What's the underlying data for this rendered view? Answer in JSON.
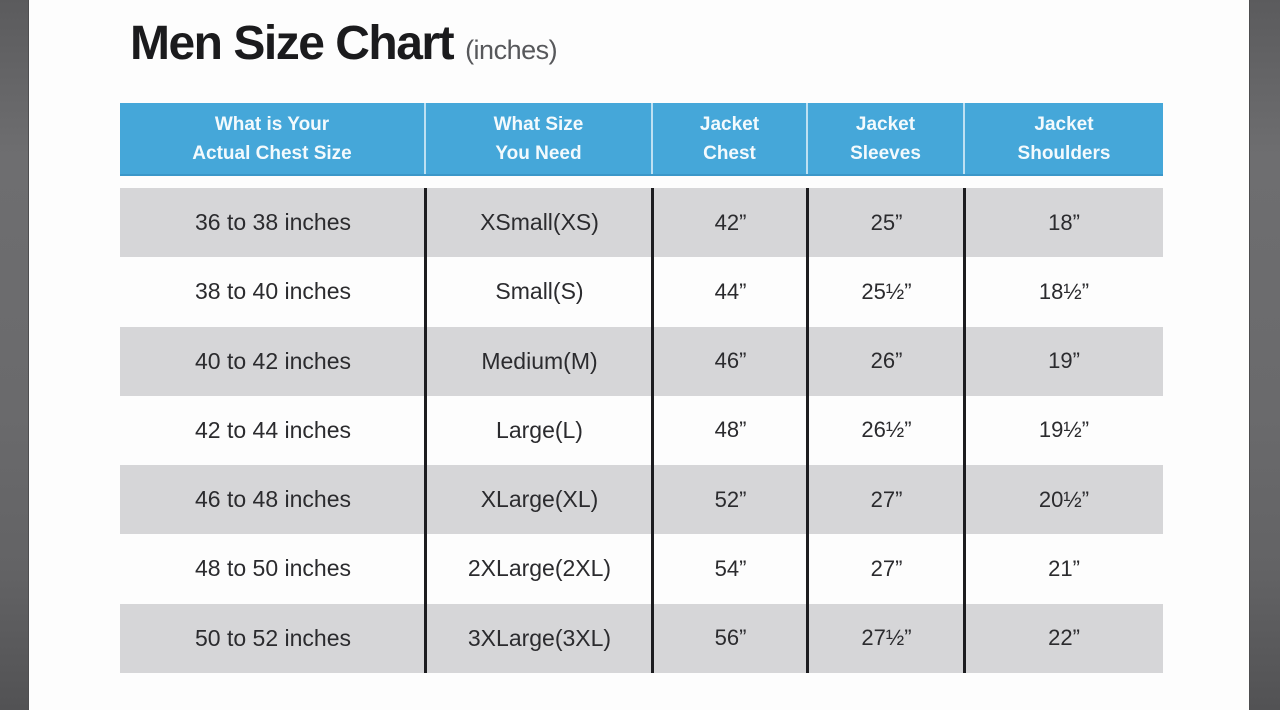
{
  "title": {
    "main": "Men Size Chart",
    "suffix": "(inches)"
  },
  "colors": {
    "header_bg": "#45a7d9",
    "header_text": "#f3fafd",
    "alt_row_bg": "#d6d6d8",
    "body_text": "#2b2b2e",
    "frame_strip": "#6a6a6c",
    "divider": "#1d1d20"
  },
  "table": {
    "headers": [
      {
        "line1": "What is Your",
        "line2": "Actual Chest Size"
      },
      {
        "line1": "What Size",
        "line2": "You Need"
      },
      {
        "line1": "Jacket",
        "line2": "Chest"
      },
      {
        "line1": "Jacket",
        "line2": "Sleeves"
      },
      {
        "line1": "Jacket",
        "line2": "Shoulders"
      }
    ],
    "rows": [
      {
        "chest_range": "36 to 38 inches",
        "size": "XSmall(XS)",
        "jacket_chest": "42”",
        "jacket_sleeves": "25”",
        "jacket_shoulders": "18”"
      },
      {
        "chest_range": "38 to 40 inches",
        "size": "Small(S)",
        "jacket_chest": "44”",
        "jacket_sleeves": "25½”",
        "jacket_shoulders": "18½”"
      },
      {
        "chest_range": "40 to 42 inches",
        "size": "Medium(M)",
        "jacket_chest": "46”",
        "jacket_sleeves": "26”",
        "jacket_shoulders": "19”"
      },
      {
        "chest_range": "42 to 44 inches",
        "size": "Large(L)",
        "jacket_chest": "48”",
        "jacket_sleeves": "26½”",
        "jacket_shoulders": "19½”"
      },
      {
        "chest_range": "46 to 48 inches",
        "size": "XLarge(XL)",
        "jacket_chest": "52”",
        "jacket_sleeves": "27”",
        "jacket_shoulders": "20½”"
      },
      {
        "chest_range": "48 to 50 inches",
        "size": "2XLarge(2XL)",
        "jacket_chest": "54”",
        "jacket_sleeves": "27”",
        "jacket_shoulders": "21”"
      },
      {
        "chest_range": "50 to 52 inches",
        "size": "3XLarge(3XL)",
        "jacket_chest": "56”",
        "jacket_sleeves": "27½”",
        "jacket_shoulders": "22”"
      }
    ]
  },
  "chart_data": {
    "type": "table",
    "title": "Men Size Chart (inches)",
    "columns": [
      "What is Your Actual Chest Size",
      "What Size You Need",
      "Jacket Chest",
      "Jacket Sleeves",
      "Jacket Shoulders"
    ],
    "rows": [
      [
        "36 to 38 inches",
        "XSmall(XS)",
        "42”",
        "25”",
        "18”"
      ],
      [
        "38 to 40 inches",
        "Small(S)",
        "44”",
        "25½”",
        "18½”"
      ],
      [
        "40 to 42 inches",
        "Medium(M)",
        "46”",
        "26”",
        "19”"
      ],
      [
        "42 to 44 inches",
        "Large(L)",
        "48”",
        "26½”",
        "19½”"
      ],
      [
        "46 to 48 inches",
        "XLarge(XL)",
        "52”",
        "27”",
        "20½”"
      ],
      [
        "48 to 50 inches",
        "2XLarge(2XL)",
        "54”",
        "27”",
        "21”"
      ],
      [
        "50 to 52 inches",
        "3XLarge(3XL)",
        "56”",
        "27½”",
        "22”"
      ]
    ]
  }
}
